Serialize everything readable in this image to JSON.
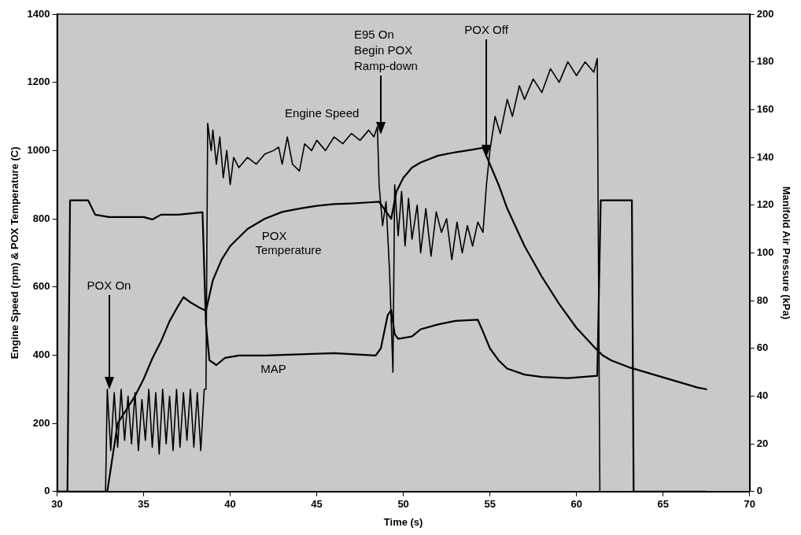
{
  "chart_data": {
    "type": "line",
    "xlabel": "Time (s)",
    "ylabel": "Engine Speed (rpm) & POX Temperature (C)",
    "y2label": "Manifold Air Pressure (kPa)",
    "xlim": [
      30,
      70
    ],
    "xticks": [
      30,
      35,
      40,
      45,
      50,
      55,
      60,
      65,
      70
    ],
    "ylim": [
      0,
      1400
    ],
    "yticks": [
      0,
      200,
      400,
      600,
      800,
      1000,
      1200,
      1400
    ],
    "y2lim": [
      0,
      200
    ],
    "y2ticks": [
      0,
      20,
      40,
      60,
      80,
      100,
      120,
      140,
      160,
      180,
      200
    ],
    "legend": false,
    "grid": false,
    "marker": "none",
    "line_style": "solid",
    "annotations": [
      "POX On",
      "E95 On\nBegin POX\nRamp-down",
      "POX Off"
    ],
    "series": [
      {
        "name": "Engine Speed",
        "color": "#000000",
        "x": [
          30,
          32.8,
          32.9,
          33.1,
          33.3,
          33.5,
          33.7,
          33.9,
          34.1,
          34.3,
          34.5,
          34.7,
          34.9,
          35.1,
          35.3,
          35.5,
          35.7,
          35.9,
          36.1,
          36.3,
          36.5,
          36.7,
          36.9,
          37.1,
          37.3,
          37.5,
          37.7,
          37.9,
          38.1,
          38.3,
          38.5,
          38.6,
          38.7,
          38.9,
          39,
          39.2,
          39.4,
          39.6,
          39.8,
          40,
          40.2,
          40.5,
          41,
          41.5,
          42,
          42.5,
          42.8,
          43,
          43.3,
          43.6,
          44,
          44.3,
          44.7,
          45,
          45.5,
          46,
          46.5,
          47,
          47.5,
          48,
          48.3,
          48.5,
          48.6,
          48.8,
          49,
          49.2,
          49.4,
          49.5,
          49.7,
          49.9,
          50.1,
          50.3,
          50.5,
          50.8,
          51,
          51.3,
          51.6,
          51.9,
          52.2,
          52.5,
          52.8,
          53.1,
          53.4,
          53.7,
          54,
          54.3,
          54.6,
          54.8,
          55,
          55.3,
          55.6,
          56,
          56.3,
          56.7,
          57,
          57.5,
          58,
          58.5,
          59,
          59.5,
          60,
          60.5,
          61,
          61.2,
          61.35,
          67.5
        ],
        "values": [
          0,
          0,
          300,
          120,
          290,
          130,
          300,
          150,
          280,
          140,
          290,
          120,
          270,
          150,
          300,
          130,
          290,
          110,
          300,
          140,
          280,
          120,
          300,
          130,
          290,
          150,
          300,
          130,
          290,
          120,
          300,
          300,
          1080,
          1000,
          1060,
          960,
          1040,
          920,
          1000,
          900,
          980,
          950,
          980,
          960,
          990,
          1000,
          1010,
          960,
          1040,
          960,
          940,
          1020,
          1000,
          1030,
          1000,
          1040,
          1020,
          1050,
          1030,
          1060,
          1040,
          1070,
          900,
          780,
          850,
          650,
          350,
          900,
          750,
          880,
          720,
          860,
          740,
          840,
          700,
          830,
          690,
          820,
          760,
          800,
          680,
          790,
          700,
          780,
          720,
          790,
          760,
          900,
          1000,
          1100,
          1050,
          1150,
          1100,
          1190,
          1150,
          1210,
          1170,
          1240,
          1200,
          1260,
          1220,
          1260,
          1230,
          1270,
          0,
          0
        ]
      },
      {
        "name": "POX\nTemperature",
        "color": "#000000",
        "x": [
          30,
          32.9,
          33.2,
          33.5,
          34,
          34.5,
          35,
          35.5,
          36,
          36.5,
          37,
          37.3,
          37.7,
          38.2,
          38.6,
          39,
          39.5,
          40,
          41,
          42,
          43,
          44,
          45,
          46,
          47,
          48,
          48.6,
          49.3,
          49.6,
          50,
          50.5,
          51,
          52,
          53,
          54,
          54.6,
          55,
          55.5,
          56,
          57,
          58,
          59,
          60,
          61,
          61.5,
          62,
          63,
          64,
          65,
          66,
          67,
          67.5
        ],
        "values": [
          0,
          0,
          100,
          200,
          240,
          280,
          330,
          390,
          440,
          500,
          545,
          570,
          555,
          540,
          530,
          620,
          680,
          720,
          770,
          800,
          820,
          830,
          838,
          843,
          845,
          848,
          850,
          800,
          880,
          920,
          950,
          965,
          985,
          995,
          1003,
          1008,
          960,
          900,
          830,
          720,
          630,
          550,
          480,
          425,
          400,
          385,
          365,
          350,
          335,
          320,
          305,
          300
        ]
      },
      {
        "name": "MAP",
        "color": "#000000",
        "axis": "y2",
        "x": [
          30,
          30.6,
          30.75,
          31.8,
          32.2,
          33,
          34,
          35,
          35.5,
          36,
          37,
          38.4,
          38.6,
          38.8,
          39.2,
          39.7,
          40.5,
          42,
          44,
          46,
          48.4,
          48.7,
          49.1,
          49.3,
          49.5,
          49.7,
          50.5,
          51,
          52,
          53,
          54.3,
          54.6,
          55,
          55.5,
          56,
          57,
          58,
          59.5,
          61.2,
          61.4,
          63.2,
          63.3,
          67.5
        ],
        "values": [
          0,
          0,
          122,
          122,
          116,
          115,
          115,
          115,
          114,
          116,
          116,
          117,
          70,
          55,
          53,
          56,
          57,
          57,
          57.5,
          58,
          57,
          60,
          74,
          76,
          66,
          64,
          65,
          68,
          70,
          71.5,
          72,
          67,
          60,
          55,
          51.5,
          49,
          48,
          47.5,
          48.5,
          122,
          122,
          0,
          0
        ]
      }
    ]
  }
}
